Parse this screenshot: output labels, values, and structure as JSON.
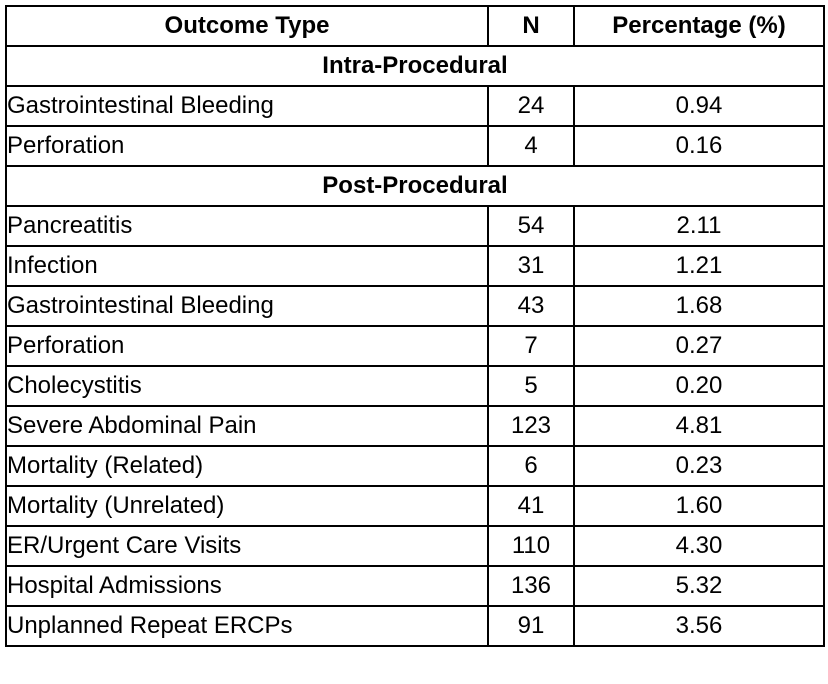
{
  "table": {
    "headers": {
      "outcome_type": "Outcome Type",
      "n": "N",
      "percentage": "Percentage (%)"
    },
    "sections": [
      {
        "title": "Intra-Procedural",
        "rows": [
          {
            "outcome": "Gastrointestinal Bleeding",
            "n": "24",
            "pct": "0.94"
          },
          {
            "outcome": "Perforation",
            "n": "4",
            "pct": "0.16"
          }
        ]
      },
      {
        "title": "Post-Procedural",
        "rows": [
          {
            "outcome": "Pancreatitis",
            "n": "54",
            "pct": "2.11"
          },
          {
            "outcome": "Infection",
            "n": "31",
            "pct": "1.21"
          },
          {
            "outcome": "Gastrointestinal Bleeding",
            "n": "43",
            "pct": "1.68"
          },
          {
            "outcome": "Perforation",
            "n": "7",
            "pct": "0.27"
          },
          {
            "outcome": "Cholecystitis",
            "n": "5",
            "pct": "0.20"
          },
          {
            "outcome": "Severe Abdominal Pain",
            "n": "123",
            "pct": "4.81"
          },
          {
            "outcome": "Mortality (Related)",
            "n": "6",
            "pct": "0.23"
          },
          {
            "outcome": "Mortality (Unrelated)",
            "n": "41",
            "pct": "1.60"
          },
          {
            "outcome": "ER/Urgent Care Visits",
            "n": "110",
            "pct": "4.30"
          },
          {
            "outcome": "Hospital Admissions",
            "n": "136",
            "pct": "5.32"
          },
          {
            "outcome": "Unplanned Repeat ERCPs",
            "n": "91",
            "pct": "3.56"
          }
        ]
      }
    ]
  }
}
